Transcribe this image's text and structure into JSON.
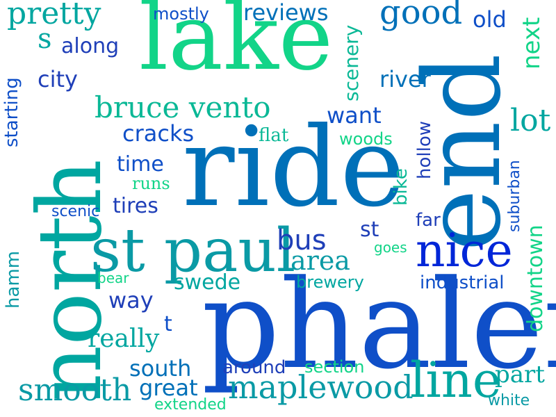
{
  "words": {
    "lake": "lake",
    "end": "end",
    "north": "north",
    "ride": "ride",
    "phalen": "phalen",
    "st_paul": "st paul",
    "nice": "nice",
    "line": "line",
    "bruce_vento": "bruce vento",
    "pretty": "pretty",
    "mostly": "mostly",
    "reviews": "reviews",
    "good": "good",
    "old": "old",
    "next": "next",
    "s": "s",
    "along": "along",
    "city": "city",
    "scenery": "scenery",
    "river": "river",
    "starting": "starting",
    "want": "want",
    "lot": "lot",
    "cracks": "cracks",
    "flat": "flat",
    "woods": "woods",
    "hollow": "hollow",
    "time": "time",
    "runs": "runs",
    "bike": "bike",
    "suburban": "suburban",
    "scenic": "scenic",
    "tires": "tires",
    "far": "far",
    "st": "st",
    "bus": "bus",
    "goes": "goes",
    "area": "area",
    "downtown": "downtown",
    "hamm": "hamm",
    "bear": "bear",
    "swede": "swede",
    "brewery": "brewery",
    "industrial": "industrial",
    "way": "way",
    "t": "t",
    "really": "really",
    "south": "south",
    "around": "around",
    "section": "section",
    "part": "part",
    "smooth": "smooth",
    "great": "great",
    "maplewood": "maplewood",
    "extended": "extended",
    "white": "white"
  },
  "colors": {
    "teal": "#00a6a0",
    "royal_blue": "#0f4fc8",
    "steel_blue": "#0070b8",
    "bright_green": "#12d488",
    "cerulean": "#0a8db0",
    "indigo_blue": "#1f3fb8",
    "sea_green": "#0ab896",
    "pure_blue": "#0026d8",
    "cyan_teal": "#0a9aa5",
    "background": "#ffffff"
  }
}
